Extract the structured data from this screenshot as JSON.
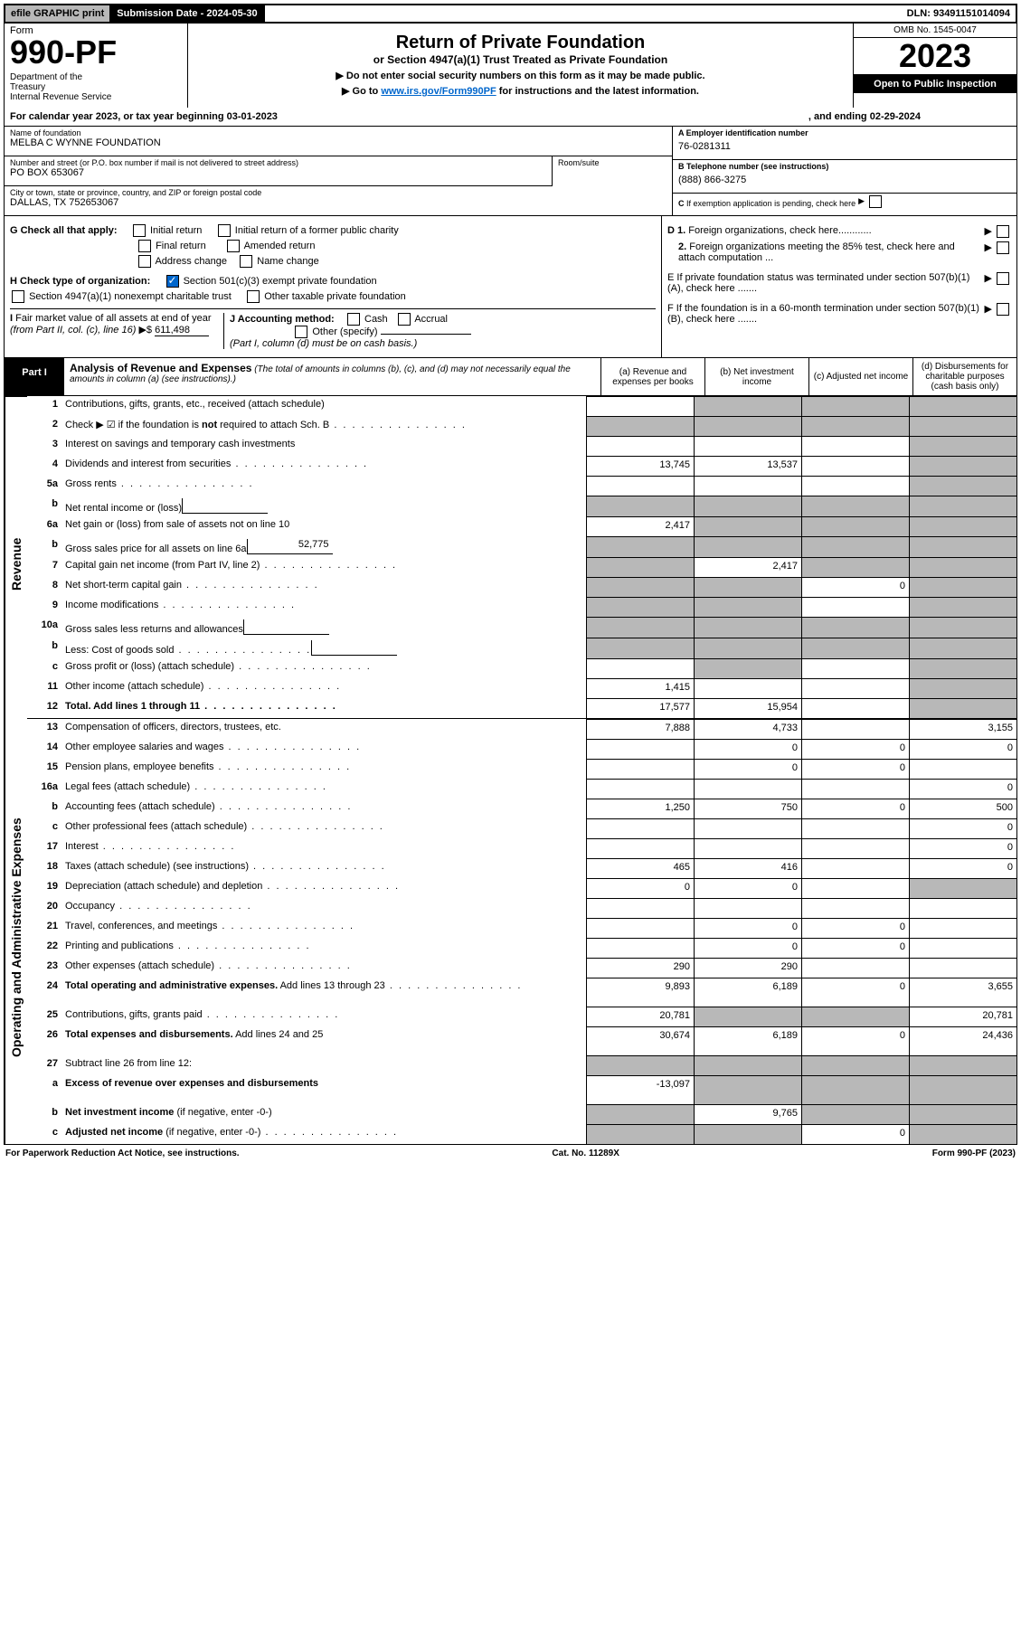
{
  "topbar": {
    "efile": "efile GRAPHIC print",
    "subdate_label": "Submission Date - ",
    "subdate": "2024-05-30",
    "dln_label": "DLN: ",
    "dln": "93491151014094"
  },
  "header": {
    "form_label": "Form",
    "form_no": "990-PF",
    "dept": "Department of the Treasury\nInternal Revenue Service",
    "title": "Return of Private Foundation",
    "subtitle": "or Section 4947(a)(1) Trust Treated as Private Foundation",
    "note1": "▶ Do not enter social security numbers on this form as it may be made public.",
    "note2_pre": "▶ Go to ",
    "note2_link": "www.irs.gov/Form990PF",
    "note2_post": " for instructions and the latest information.",
    "omb": "OMB No. 1545-0047",
    "year": "2023",
    "open": "Open to Public Inspection"
  },
  "calyear": {
    "pre": "For calendar year 2023, or tax year beginning ",
    "begin": "03-01-2023",
    "mid": ", and ending ",
    "end": "02-29-2024"
  },
  "info": {
    "name_label": "Name of foundation",
    "name": "MELBA C WYNNE FOUNDATION",
    "addr_label": "Number and street (or P.O. box number if mail is not delivered to street address)",
    "addr": "PO BOX 653067",
    "room_label": "Room/suite",
    "city_label": "City or town, state or province, country, and ZIP or foreign postal code",
    "city": "DALLAS, TX  752653067",
    "ein_label_a": "A Employer identification number",
    "ein": "76-0281311",
    "phone_label_b": "B Telephone number (see instructions)",
    "phone": "(888) 866-3275",
    "c_label": "C If exemption application is pending, check here"
  },
  "checks": {
    "g_label": "G Check all that apply:",
    "g_opts": [
      "Initial return",
      "Initial return of a former public charity",
      "Final return",
      "Amended return",
      "Address change",
      "Name change"
    ],
    "h_label": "H Check type of organization:",
    "h_opt1": "Section 501(c)(3) exempt private foundation",
    "h_opt2": "Section 4947(a)(1) nonexempt charitable trust",
    "h_opt3": "Other taxable private foundation",
    "i_label": "I Fair market value of all assets at end of year (from Part II, col. (c), line 16)",
    "i_val": "611,498",
    "j_label": "J Accounting method:",
    "j_opts": [
      "Cash",
      "Accrual",
      "Other (specify)"
    ],
    "j_note": "(Part I, column (d) must be on cash basis.)",
    "d1": "D 1. Foreign organizations, check here............",
    "d2": "2. Foreign organizations meeting the 85% test, check here and attach computation ...",
    "e": "E  If private foundation status was terminated under section 507(b)(1)(A), check here .......",
    "f": "F  If the foundation is in a 60-month termination under section 507(b)(1)(B), check here .......",
    "dollar": "▶$"
  },
  "part1": {
    "label": "Part I",
    "title": "Analysis of Revenue and Expenses",
    "title_note": " (The total of amounts in columns (b), (c), and (d) may not necessarily equal the amounts in column (a) (see instructions).)",
    "cols": [
      "(a) Revenue and expenses per books",
      "(b) Net investment income",
      "(c) Adjusted net income",
      "(d) Disbursements for charitable purposes (cash basis only)"
    ]
  },
  "side": {
    "rev": "Revenue",
    "exp": "Operating and Administrative Expenses"
  },
  "rows": [
    {
      "n": "1",
      "d": "Contributions, gifts, grants, etc., received (attach schedule)",
      "a": "",
      "b": "s",
      "c": "s",
      "e": "s"
    },
    {
      "n": "2",
      "d": "Check ▶ ☑ if the foundation is <b>not</b> required to attach Sch. B",
      "dots": true,
      "a": "s",
      "b": "s",
      "c": "s",
      "e": "s"
    },
    {
      "n": "3",
      "d": "Interest on savings and temporary cash investments",
      "a": "",
      "b": "",
      "c": "",
      "e": "s"
    },
    {
      "n": "4",
      "d": "Dividends and interest from securities",
      "dots": true,
      "a": "13,745",
      "b": "13,537",
      "c": "",
      "e": "s"
    },
    {
      "n": "5a",
      "d": "Gross rents",
      "dots": true,
      "a": "",
      "b": "",
      "c": "",
      "e": "s"
    },
    {
      "n": "b",
      "d": "Net rental income or (loss)",
      "inner": "",
      "a": "s",
      "b": "s",
      "c": "s",
      "e": "s"
    },
    {
      "n": "6a",
      "d": "Net gain or (loss) from sale of assets not on line 10",
      "a": "2,417",
      "b": "s",
      "c": "s",
      "e": "s"
    },
    {
      "n": "b",
      "d": "Gross sales price for all assets on line 6a",
      "inner": "52,775",
      "a": "s",
      "b": "s",
      "c": "s",
      "e": "s"
    },
    {
      "n": "7",
      "d": "Capital gain net income (from Part IV, line 2)",
      "dots": true,
      "a": "s",
      "b": "2,417",
      "c": "s",
      "e": "s"
    },
    {
      "n": "8",
      "d": "Net short-term capital gain",
      "dots": true,
      "a": "s",
      "b": "s",
      "c": "0",
      "e": "s"
    },
    {
      "n": "9",
      "d": "Income modifications",
      "dots": true,
      "a": "s",
      "b": "s",
      "c": "",
      "e": "s"
    },
    {
      "n": "10a",
      "d": "Gross sales less returns and allowances",
      "inner": "",
      "a": "s",
      "b": "s",
      "c": "s",
      "e": "s"
    },
    {
      "n": "b",
      "d": "Less: Cost of goods sold",
      "dots": true,
      "inner": "",
      "a": "s",
      "b": "s",
      "c": "s",
      "e": "s"
    },
    {
      "n": "c",
      "d": "Gross profit or (loss) (attach schedule)",
      "dots": true,
      "a": "",
      "b": "s",
      "c": "",
      "e": "s"
    },
    {
      "n": "11",
      "d": "Other income (attach schedule)",
      "dots": true,
      "a": "1,415",
      "b": "",
      "c": "",
      "e": "s"
    },
    {
      "n": "12",
      "d": "<b>Total.</b> Add lines 1 through 11",
      "dots": true,
      "a": "17,577",
      "b": "15,954",
      "c": "",
      "e": "s",
      "bold": true
    },
    {
      "n": "13",
      "d": "Compensation of officers, directors, trustees, etc.",
      "a": "7,888",
      "b": "4,733",
      "c": "",
      "e": "3,155"
    },
    {
      "n": "14",
      "d": "Other employee salaries and wages",
      "dots": true,
      "a": "",
      "b": "0",
      "c": "0",
      "e": "0"
    },
    {
      "n": "15",
      "d": "Pension plans, employee benefits",
      "dots": true,
      "a": "",
      "b": "0",
      "c": "0",
      "e": ""
    },
    {
      "n": "16a",
      "d": "Legal fees (attach schedule)",
      "dots": true,
      "a": "",
      "b": "",
      "c": "",
      "e": "0"
    },
    {
      "n": "b",
      "d": "Accounting fees (attach schedule)",
      "dots": true,
      "a": "1,250",
      "b": "750",
      "c": "0",
      "e": "500"
    },
    {
      "n": "c",
      "d": "Other professional fees (attach schedule)",
      "dots": true,
      "a": "",
      "b": "",
      "c": "",
      "e": "0"
    },
    {
      "n": "17",
      "d": "Interest",
      "dots": true,
      "a": "",
      "b": "",
      "c": "",
      "e": "0"
    },
    {
      "n": "18",
      "d": "Taxes (attach schedule) (see instructions)",
      "dots": true,
      "a": "465",
      "b": "416",
      "c": "",
      "e": "0"
    },
    {
      "n": "19",
      "d": "Depreciation (attach schedule) and depletion",
      "dots": true,
      "a": "0",
      "b": "0",
      "c": "",
      "e": "s"
    },
    {
      "n": "20",
      "d": "Occupancy",
      "dots": true,
      "a": "",
      "b": "",
      "c": "",
      "e": ""
    },
    {
      "n": "21",
      "d": "Travel, conferences, and meetings",
      "dots": true,
      "a": "",
      "b": "0",
      "c": "0",
      "e": ""
    },
    {
      "n": "22",
      "d": "Printing and publications",
      "dots": true,
      "a": "",
      "b": "0",
      "c": "0",
      "e": ""
    },
    {
      "n": "23",
      "d": "Other expenses (attach schedule)",
      "dots": true,
      "a": "290",
      "b": "290",
      "c": "",
      "e": ""
    },
    {
      "n": "24",
      "d": "<b>Total operating and administrative expenses.</b> Add lines 13 through 23",
      "dots": true,
      "a": "9,893",
      "b": "6,189",
      "c": "0",
      "e": "3,655",
      "tall": true
    },
    {
      "n": "25",
      "d": "Contributions, gifts, grants paid",
      "dots": true,
      "a": "20,781",
      "b": "s",
      "c": "s",
      "e": "20,781"
    },
    {
      "n": "26",
      "d": "<b>Total expenses and disbursements.</b> Add lines 24 and 25",
      "a": "30,674",
      "b": "6,189",
      "c": "0",
      "e": "24,436",
      "tall": true
    },
    {
      "n": "27",
      "d": "Subtract line 26 from line 12:",
      "a": "s",
      "b": "s",
      "c": "s",
      "e": "s"
    },
    {
      "n": "a",
      "d": "<b>Excess of revenue over expenses and disbursements</b>",
      "a": "-13,097",
      "b": "s",
      "c": "s",
      "e": "s",
      "tall": true
    },
    {
      "n": "b",
      "d": "<b>Net investment income</b> (if negative, enter -0-)",
      "a": "s",
      "b": "9,765",
      "c": "s",
      "e": "s"
    },
    {
      "n": "c",
      "d": "<b>Adjusted net income</b> (if negative, enter -0-)",
      "dots": true,
      "a": "s",
      "b": "s",
      "c": "0",
      "e": "s"
    }
  ],
  "footer": {
    "left": "For Paperwork Reduction Act Notice, see instructions.",
    "mid": "Cat. No. 11289X",
    "right": "Form 990-PF (2023)"
  }
}
